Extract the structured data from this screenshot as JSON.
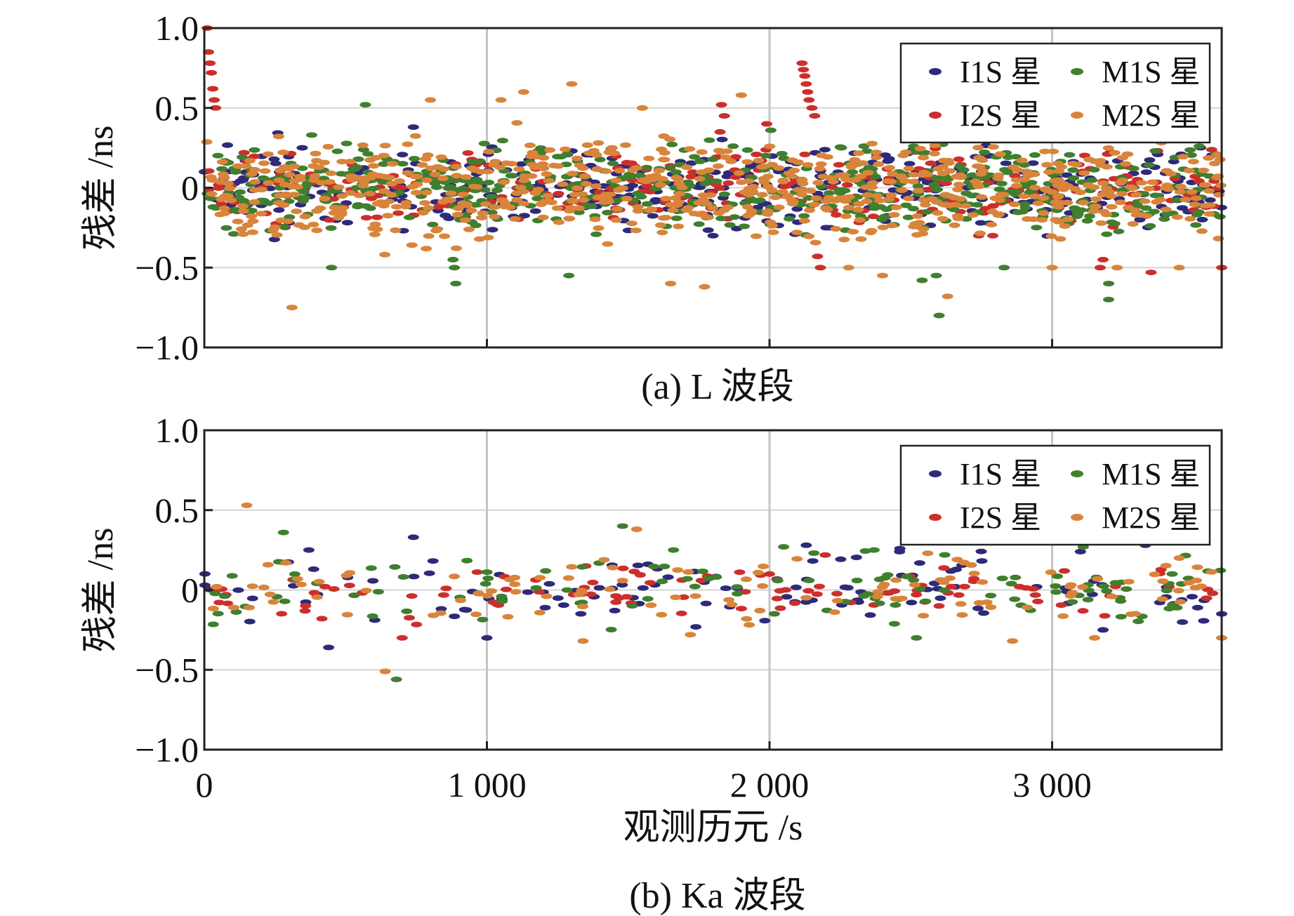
{
  "chart_data": [
    {
      "type": "scatter",
      "caption": "(a) L 波段",
      "xlabel": "",
      "ylabel": "残差 /ns",
      "xlim": [
        0,
        3600
      ],
      "ylim": [
        -1.0,
        1.0
      ],
      "yticks": [
        1.0,
        0.5,
        0,
        -0.5,
        -1.0
      ],
      "yticklabels": [
        "1.0",
        "0.5",
        "0",
        "−0.5",
        "−1.0"
      ],
      "xticks": [
        1000,
        2000,
        3000
      ],
      "xticklabels": [],
      "grid": true,
      "legend_position": "top-right",
      "series": [
        {
          "name": "I1S 星",
          "color": "#2e2a7a",
          "count": 420,
          "spread": 0.12,
          "seed": 11,
          "points": [
            [
              0,
              0.1
            ],
            [
              300,
              -0.22
            ],
            [
              740,
              0.38
            ],
            [
              905,
              -0.2
            ],
            [
              1005,
              0.21
            ],
            [
              1800,
              -0.3
            ],
            [
              2200,
              -0.25
            ],
            [
              2780,
              0.2
            ],
            [
              3310,
              -0.2
            ]
          ]
        },
        {
          "name": "I2S 星",
          "color": "#cc2f2b",
          "count": 260,
          "spread": 0.11,
          "seed": 23,
          "points": [
            [
              10,
              1.0
            ],
            [
              15,
              0.85
            ],
            [
              20,
              0.78
            ],
            [
              25,
              0.72
            ],
            [
              30,
              0.62
            ],
            [
              35,
              0.55
            ],
            [
              40,
              0.5
            ],
            [
              1830,
              0.52
            ],
            [
              1840,
              0.45
            ],
            [
              1825,
              0.35
            ],
            [
              1990,
              0.4
            ],
            [
              2115,
              0.78
            ],
            [
              2120,
              0.74
            ],
            [
              2125,
              0.7
            ],
            [
              2130,
              0.65
            ],
            [
              2135,
              0.6
            ],
            [
              2140,
              0.55
            ],
            [
              2150,
              0.5
            ],
            [
              2160,
              0.45
            ],
            [
              2170,
              -0.43
            ],
            [
              2180,
              -0.5
            ],
            [
              2740,
              -0.3
            ],
            [
              2790,
              -0.3
            ],
            [
              3170,
              -0.5
            ],
            [
              3180,
              -0.45
            ],
            [
              3350,
              -0.53
            ],
            [
              3600,
              -0.5
            ]
          ]
        },
        {
          "name": "M1S 星",
          "color": "#3f7f2e",
          "count": 520,
          "spread": 0.13,
          "seed": 37,
          "points": [
            [
              380,
              0.33
            ],
            [
              450,
              -0.5
            ],
            [
              570,
              0.52
            ],
            [
              880,
              -0.45
            ],
            [
              885,
              -0.5
            ],
            [
              890,
              -0.6
            ],
            [
              1290,
              -0.55
            ],
            [
              2540,
              -0.58
            ],
            [
              2590,
              -0.55
            ],
            [
              2600,
              -0.8
            ],
            [
              2830,
              -0.5
            ],
            [
              3200,
              -0.7
            ],
            [
              3200,
              -0.6
            ]
          ]
        },
        {
          "name": "M2S 星",
          "color": "#d9843b",
          "count": 700,
          "spread": 0.15,
          "seed": 53,
          "points": [
            [
              310,
              -0.75
            ],
            [
              800,
              0.55
            ],
            [
              1050,
              0.55
            ],
            [
              1130,
              0.6
            ],
            [
              1300,
              0.65
            ],
            [
              1550,
              0.5
            ],
            [
              1650,
              -0.6
            ],
            [
              1770,
              -0.62
            ],
            [
              1900,
              0.58
            ],
            [
              2280,
              -0.5
            ],
            [
              2400,
              -0.55
            ],
            [
              2630,
              -0.68
            ],
            [
              3000,
              -0.5
            ],
            [
              3230,
              -0.5
            ],
            [
              3450,
              -0.5
            ]
          ]
        }
      ]
    },
    {
      "type": "scatter",
      "caption": "(b) Ka 波段",
      "xlabel": "观测历元 /s",
      "ylabel": "残差 /ns",
      "xlim": [
        0,
        3600
      ],
      "ylim": [
        -1.0,
        1.0
      ],
      "yticks": [
        1.0,
        0.5,
        0,
        -0.5,
        -1.0
      ],
      "yticklabels": [
        "1.0",
        "0.5",
        "0",
        "−0.5",
        "−1.0"
      ],
      "xticks": [
        0,
        1000,
        2000,
        3000
      ],
      "xticklabels": [
        "0",
        "1 000",
        "2 000",
        "3 000"
      ],
      "grid": true,
      "legend_position": "top-right",
      "series": [
        {
          "name": "I1S 星",
          "color": "#2e2a7a",
          "count": 110,
          "spread": 0.1,
          "seed": 71,
          "points": [
            [
              370,
              0.25
            ],
            [
              440,
              -0.36
            ],
            [
              740,
              0.33
            ],
            [
              1000,
              -0.3
            ],
            [
              2130,
              0.28
            ],
            [
              2460,
              0.24
            ],
            [
              3100,
              0.24
            ],
            [
              3180,
              -0.25
            ],
            [
              3330,
              0.28
            ],
            [
              3600,
              -0.15
            ]
          ]
        },
        {
          "name": "I2S 星",
          "color": "#cc2f2b",
          "count": 100,
          "spread": 0.08,
          "seed": 83,
          "points": [
            [
              700,
              -0.3
            ],
            [
              1350,
              0.15
            ],
            [
              2000,
              0.1
            ],
            [
              2600,
              -0.1
            ]
          ]
        },
        {
          "name": "M1S 星",
          "color": "#3f7f2e",
          "count": 110,
          "spread": 0.1,
          "seed": 97,
          "points": [
            [
              280,
              0.36
            ],
            [
              680,
              -0.56
            ],
            [
              1480,
              0.4
            ],
            [
              1660,
              0.25
            ],
            [
              2050,
              0.27
            ],
            [
              2370,
              0.25
            ],
            [
              2520,
              -0.3
            ],
            [
              2620,
              0.22
            ],
            [
              3110,
              0.27
            ]
          ]
        },
        {
          "name": "M2S 星",
          "color": "#d9843b",
          "count": 110,
          "spread": 0.1,
          "seed": 109,
          "points": [
            [
              150,
              0.53
            ],
            [
              640,
              -0.51
            ],
            [
              1340,
              -0.32
            ],
            [
              1530,
              0.38
            ],
            [
              1720,
              -0.28
            ],
            [
              2560,
              0.23
            ],
            [
              2860,
              -0.32
            ],
            [
              3150,
              -0.3
            ],
            [
              3450,
              0.2
            ],
            [
              3600,
              -0.3
            ]
          ]
        }
      ]
    }
  ]
}
